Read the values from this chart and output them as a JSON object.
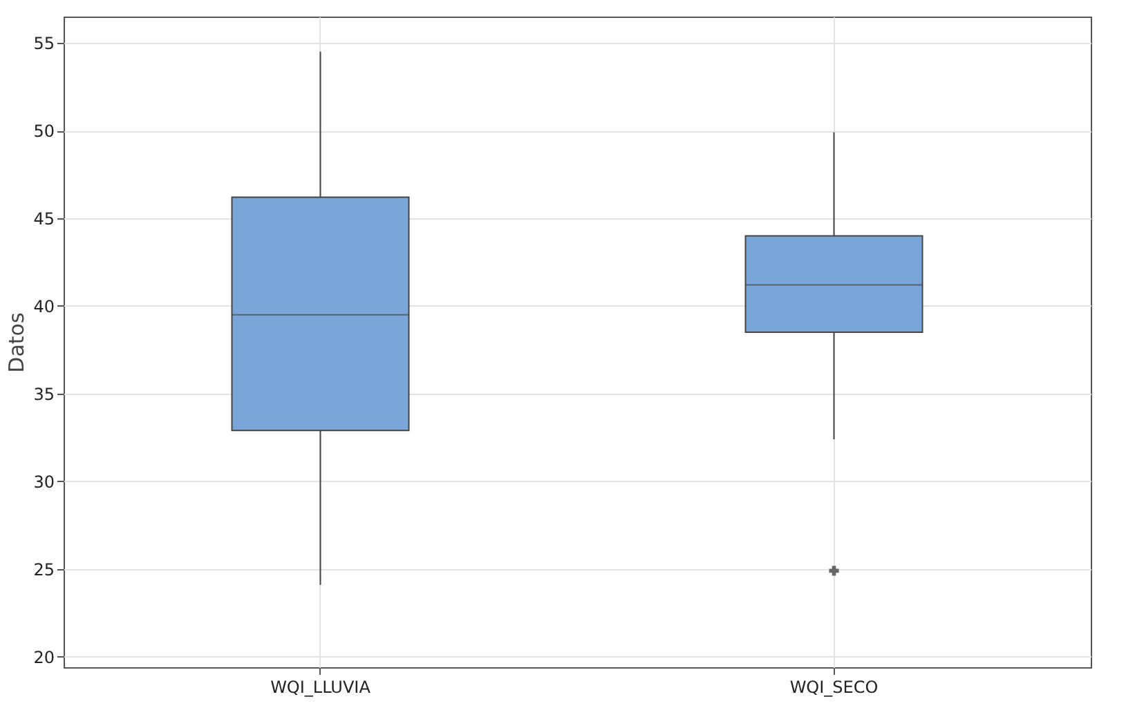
{
  "chart_data": {
    "type": "box",
    "ylabel": "Datos",
    "categories": [
      "WQI_LLUVIA",
      "WQI_SECO"
    ],
    "boxes": [
      {
        "low": 24.1,
        "q1": 32.9,
        "median": 39.5,
        "q3": 46.2,
        "high": 54.5
      },
      {
        "low": 32.4,
        "q1": 38.5,
        "median": 41.2,
        "q3": 44.0,
        "high": 49.9,
        "outliers": [
          24.9
        ]
      }
    ],
    "color": "#7aa5d8",
    "marker": "cross",
    "ylim": [
      19.4,
      56.5
    ],
    "yticks": [
      20,
      25,
      30,
      35,
      40,
      45,
      50,
      55
    ],
    "grid": true
  }
}
